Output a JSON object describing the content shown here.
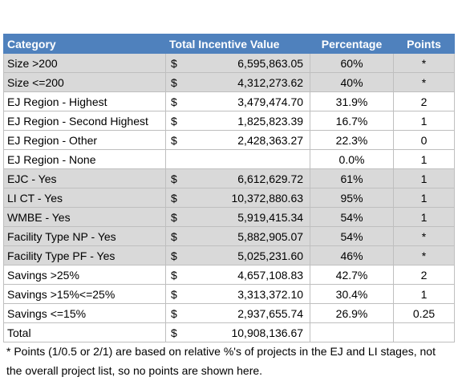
{
  "table": {
    "header": [
      "Category",
      "Total Incentive Value",
      "Percentage",
      "Points"
    ],
    "rows": [
      {
        "category": "Size >200",
        "currency": "$",
        "value": "6,595,863.05",
        "percentage": "60%",
        "points": "*"
      },
      {
        "category": "Size <=200",
        "currency": "$",
        "value": "4,312,273.62",
        "percentage": "40%",
        "points": "*"
      },
      {
        "category": "EJ Region - Highest",
        "currency": "$",
        "value": "3,479,474.70",
        "percentage": "31.9%",
        "points": "2"
      },
      {
        "category": "EJ Region - Second Highest",
        "currency": "$",
        "value": "1,825,823.39",
        "percentage": "16.7%",
        "points": "1"
      },
      {
        "category": "EJ Region - Other",
        "currency": "$",
        "value": "2,428,363.27",
        "percentage": "22.3%",
        "points": "0"
      },
      {
        "category": "EJ Region - None",
        "percentage": "0.0%",
        "points": "1"
      },
      {
        "category": "EJC - Yes",
        "currency": "$",
        "value": "6,612,629.72",
        "percentage": "61%",
        "points": "1"
      },
      {
        "category": "LI CT - Yes",
        "currency": "$",
        "value": "10,372,880.63",
        "percentage": "95%",
        "points": "1"
      },
      {
        "category": "WMBE - Yes",
        "currency": "$",
        "value": "5,919,415.34",
        "percentage": "54%",
        "points": "1"
      },
      {
        "category": "Facility Type NP - Yes",
        "currency": "$",
        "value": "5,882,905.07",
        "percentage": "54%",
        "points": "*"
      },
      {
        "category": "Facility Type PF - Yes",
        "currency": "$",
        "value": "5,025,231.60",
        "percentage": "46%",
        "points": "*"
      },
      {
        "category": "Savings >25%",
        "currency": "$",
        "value": "4,657,108.83",
        "percentage": "42.7%",
        "points": "2"
      },
      {
        "category": "Savings >15%<=25%",
        "currency": "$",
        "value": "3,313,372.10",
        "percentage": "30.4%",
        "points": "1"
      },
      {
        "category": "Savings <=15%",
        "currency": "$",
        "value": "2,937,655.74",
        "percentage": "26.9%",
        "points": "0.25"
      },
      {
        "category": "Total",
        "currency": "$",
        "value": "10,908,136.67"
      }
    ]
  },
  "footnote": "* Points (1/0.5 or 2/1) are based on relative %'s of projects in the EJ and LI stages, not the overall project list, so no points are shown here."
}
